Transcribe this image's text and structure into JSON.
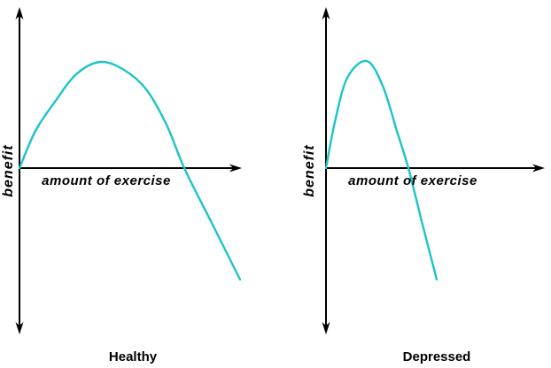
{
  "figure": {
    "background": "#ffffff",
    "axis_color": "#000000",
    "curve_color": "#1BC4C8",
    "text_color": "#000000"
  },
  "chart_data": [
    {
      "type": "line",
      "title": "Healthy",
      "xlabel": "amount of exercise",
      "ylabel": "benefit",
      "grid": false,
      "legend": "none",
      "annotation": "Benefit rises with exercise to a broad peak at a moderate amount, then declines below zero at high amounts.",
      "axes": {
        "origin": {
          "x": 22,
          "y": 190
        },
        "y_top": 8,
        "y_bottom": 378,
        "x_right": 273,
        "x_arrow": "right",
        "y_arrow": "both"
      },
      "series": [
        {
          "name": "benefit-curve-healthy",
          "color": "#1BC4C8",
          "points": [
            [
              22,
              190
            ],
            [
              40,
              148
            ],
            [
              62,
              115
            ],
            [
              86,
              84
            ],
            [
              113,
              70
            ],
            [
              140,
              79
            ],
            [
              165,
              101
            ],
            [
              188,
              141
            ],
            [
              208,
              190
            ],
            [
              238,
              250
            ],
            [
              271,
              316
            ]
          ]
        }
      ]
    },
    {
      "type": "line",
      "title": "Depressed",
      "xlabel": "amount of exercise",
      "ylabel": "benefit",
      "grid": false,
      "legend": "none",
      "annotation": "Benefit peaks sharply at a small amount of exercise, then falls steeply below zero.",
      "axes": {
        "origin": {
          "x": 368,
          "y": 190
        },
        "y_top": 8,
        "y_bottom": 378,
        "x_right": 615,
        "x_arrow": "right",
        "y_arrow": "both"
      },
      "series": [
        {
          "name": "benefit-curve-depressed",
          "color": "#1BC4C8",
          "points": [
            [
              368,
              190
            ],
            [
              378,
              138
            ],
            [
              392,
              88
            ],
            [
              414,
              69
            ],
            [
              432,
              97
            ],
            [
              448,
              148
            ],
            [
              461,
              190
            ],
            [
              476,
              250
            ],
            [
              493,
              316
            ]
          ]
        }
      ]
    }
  ]
}
